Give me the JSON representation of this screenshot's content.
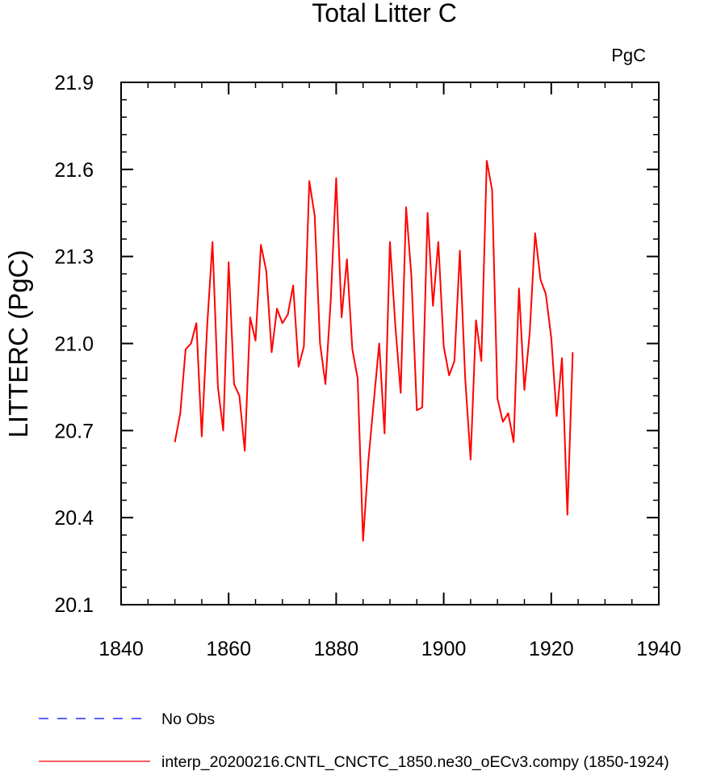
{
  "chart_data": {
    "type": "line",
    "title": "Total Litter C",
    "units_label": "PgC",
    "ylabel": "LITTERC  (PgC)",
    "xlabel": "",
    "xlim": [
      1840,
      1940
    ],
    "ylim": [
      20.1,
      21.9
    ],
    "x_ticks": [
      1840,
      1860,
      1880,
      1900,
      1920,
      1940
    ],
    "y_ticks": [
      20.1,
      20.4,
      20.7,
      21.0,
      21.3,
      21.6,
      21.9
    ],
    "x_tick_labels": [
      "1840",
      "1860",
      "1880",
      "1900",
      "1920",
      "1940"
    ],
    "y_tick_labels": [
      "20.1",
      "20.4",
      "20.7",
      "21.0",
      "21.3",
      "21.6",
      "21.9"
    ],
    "grid": false,
    "legend_position": "bottom-left, below plot",
    "series": [
      {
        "name": "No Obs",
        "color": "#0000ff",
        "dash": "dashed",
        "x": [],
        "y": []
      },
      {
        "name": "interp_20200216.CNTL_CNCTC_1850.ne30_oECv3.compy (1850-1924)",
        "color": "#ff0000",
        "dash": "solid",
        "x": [
          1850,
          1851,
          1852,
          1853,
          1854,
          1855,
          1856,
          1857,
          1858,
          1859,
          1860,
          1861,
          1862,
          1863,
          1864,
          1865,
          1866,
          1867,
          1868,
          1869,
          1870,
          1871,
          1872,
          1873,
          1874,
          1875,
          1876,
          1877,
          1878,
          1879,
          1880,
          1881,
          1882,
          1883,
          1884,
          1885,
          1886,
          1887,
          1888,
          1889,
          1890,
          1891,
          1892,
          1893,
          1894,
          1895,
          1896,
          1897,
          1898,
          1899,
          1900,
          1901,
          1902,
          1903,
          1904,
          1905,
          1906,
          1907,
          1908,
          1909,
          1910,
          1911,
          1912,
          1913,
          1914,
          1915,
          1916,
          1917,
          1918,
          1919,
          1920,
          1921,
          1922,
          1923,
          1924
        ],
        "y": [
          20.66,
          20.76,
          20.98,
          21.0,
          21.07,
          20.68,
          21.06,
          21.35,
          20.85,
          20.7,
          21.28,
          20.86,
          20.82,
          20.63,
          21.09,
          21.01,
          21.34,
          21.25,
          20.97,
          21.12,
          21.07,
          21.1,
          21.2,
          20.92,
          20.99,
          21.56,
          21.44,
          21.0,
          20.86,
          21.15,
          21.57,
          21.09,
          21.29,
          20.98,
          20.88,
          20.32,
          20.6,
          20.8,
          21.0,
          20.69,
          21.35,
          21.06,
          20.83,
          21.47,
          21.23,
          20.77,
          20.78,
          21.45,
          21.13,
          21.35,
          20.99,
          20.89,
          20.94,
          21.32,
          20.88,
          20.6,
          21.08,
          20.94,
          21.63,
          21.53,
          20.81,
          20.73,
          20.76,
          20.66,
          21.19,
          20.84,
          21.04,
          21.38,
          21.22,
          21.17,
          21.02,
          20.75,
          20.95,
          20.41,
          20.97
        ]
      }
    ]
  }
}
